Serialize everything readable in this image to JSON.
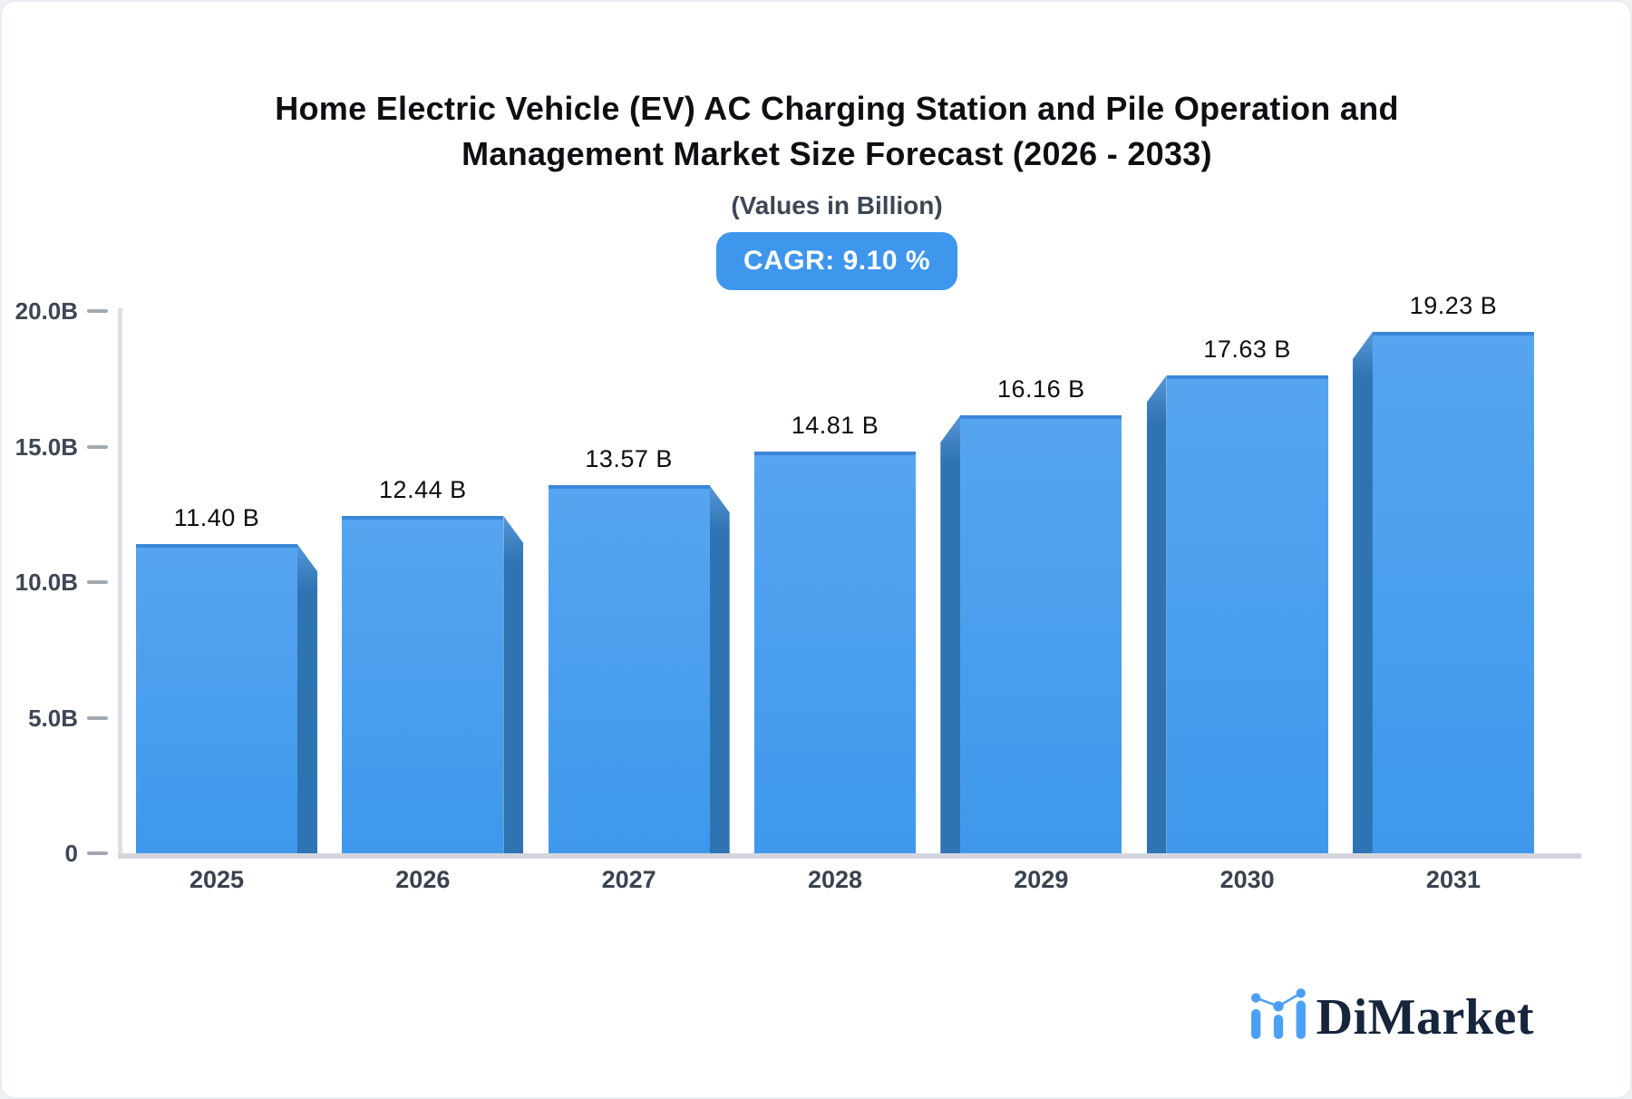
{
  "header": {
    "title_line1": "Home Electric Vehicle (EV) AC Charging Station and Pile Operation and",
    "title_line2": "Management Market Size Forecast (2026 - 2033)",
    "subtitle": "(Values in Billion)",
    "cagr_badge": "CAGR: 9.10 %"
  },
  "chart_data": {
    "type": "bar",
    "title": "Home Electric Vehicle (EV) AC Charging Station and Pile Operation and Management Market Size Forecast (2026 - 2033)",
    "subtitle": "(Values in Billion)",
    "cagr_percent": 9.1,
    "categories": [
      "2025",
      "2026",
      "2027",
      "2028",
      "2029",
      "2030",
      "2031"
    ],
    "values": [
      11.4,
      12.44,
      13.57,
      14.81,
      16.16,
      17.63,
      19.23
    ],
    "value_labels": [
      "11.40 B",
      "12.44 B",
      "13.57 B",
      "14.81 B",
      "16.16 B",
      "17.63 B",
      "19.23 B"
    ],
    "unit": "Billion",
    "ylim": [
      0,
      20
    ],
    "y_ticks": [
      "20.0B",
      "15.0B",
      "10.0B",
      "5.0B",
      "0"
    ],
    "y_tick_values": [
      20,
      15,
      10,
      5,
      0
    ],
    "grid": false,
    "legend_position": "none",
    "colors": {
      "bar_face": "#459ded",
      "bar_side": "#2e73b2",
      "badge_background": "#3e96ed",
      "axis_line": "#d3d6dc"
    }
  },
  "footer": {
    "brand_name": "DiMarket"
  }
}
